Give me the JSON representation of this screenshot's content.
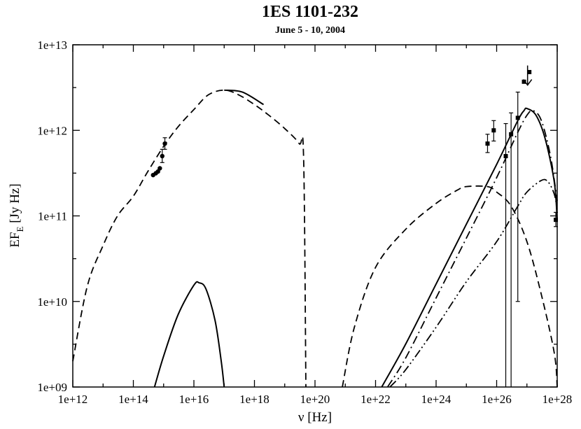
{
  "chart_data": {
    "type": "line",
    "title": "1ES 1101-232",
    "subtitle": "June 5 - 10, 2004",
    "xlabel": "ν [Hz]",
    "ylabel": {
      "main": "EF",
      "sub": "E",
      "unit": " [Jy Hz]"
    },
    "x_scale": "log",
    "y_scale": "log",
    "xlim": [
      1000000000000.0,
      1e+28
    ],
    "ylim": [
      1000000000.0,
      10000000000000.0
    ],
    "xticks": [
      {
        "value": 1000000000000.0,
        "label": "1e+12"
      },
      {
        "value": 100000000000000.0,
        "label": "1e+14"
      },
      {
        "value": 1e+16,
        "label": "1e+16"
      },
      {
        "value": 1e+18,
        "label": "1e+18"
      },
      {
        "value": 1e+20,
        "label": "1e+20"
      },
      {
        "value": 1e+22,
        "label": "1e+22"
      },
      {
        "value": 1e+24,
        "label": "1e+24"
      },
      {
        "value": 1e+26,
        "label": "1e+26"
      },
      {
        "value": 1e+28,
        "label": "1e+28"
      }
    ],
    "yticks": [
      {
        "value": 1000000000.0,
        "label": "1e+09"
      },
      {
        "value": 10000000000.0,
        "label": "1e+10"
      },
      {
        "value": 100000000000.0,
        "label": "1e+11"
      },
      {
        "value": 1000000000000.0,
        "label": "1e+12"
      },
      {
        "value": 10000000000000.0,
        "label": "1e+13"
      }
    ],
    "grid": false,
    "legend": "none",
    "series": [
      {
        "style": "dashed",
        "x": [
          1000000000000.0,
          3000000000000.0,
          10000000000000.0,
          30000000000000.0,
          100000000000000.0,
          300000000000000.0,
          1000000000000000.0,
          3000000000000000.0,
          1e+16,
          3e+16,
          1e+17,
          3e+17,
          1e+18,
          3e+18,
          1e+19,
          3e+19,
          4.2e+19,
          5e+19
        ],
        "y": [
          2000000000.0,
          15000000000.0,
          45000000000.0,
          100000000000.0,
          170000000000.0,
          330000000000.0,
          650000000000.0,
          1100000000000.0,
          1750000000000.0,
          2600000000000.0,
          2950000000000.0,
          2600000000000.0,
          2000000000000.0,
          1500000000000.0,
          1050000000000.0,
          700000000000.0,
          480000000000.0,
          1000000000.0
        ]
      },
      {
        "style": "solid",
        "x": [
          500000000000000.0,
          1000000000000000.0,
          3000000000000000.0,
          1e+16,
          1.5e+16,
          2.5e+16,
          5e+16,
          8e+16,
          1e+17
        ],
        "y": [
          1000000000.0,
          2300000000.0,
          7000000000.0,
          15500000000.0,
          16500000000.0,
          14000000000.0,
          6000000000.0,
          2000000000.0,
          1000000000.0
        ]
      },
      {
        "style": "solid",
        "x": [
          1e+17,
          4e+17,
          2e+18
        ],
        "y": [
          2950000000000.0,
          2800000000000.0,
          2000000000000.0
        ]
      },
      {
        "style": "dashed",
        "x": [
          8e+20,
          2e+21,
          1e+22,
          1e+23,
          1e+24,
          5e+24,
          1e+25,
          5e+25,
          1e+26,
          3e+26,
          1e+27,
          3e+27,
          8e+27,
          1e+28
        ],
        "y": [
          1000000000.0,
          5000000000.0,
          25000000000.0,
          70000000000.0,
          140000000000.0,
          200000000000.0,
          220000000000.0,
          220000000000.0,
          190000000000.0,
          130000000000.0,
          50000000000.0,
          12000000000.0,
          2500000000.0,
          1000000000.0
        ]
      },
      {
        "style": "solid",
        "x": [
          1.6e+22,
          1e+23,
          1e+24,
          1e+25,
          1e+26,
          5e+26,
          8e+26,
          1e+27,
          2e+27,
          4e+27,
          8e+27,
          1e+28
        ],
        "y": [
          1000000000.0,
          3200000000.0,
          16000000000.0,
          80000000000.0,
          400000000000.0,
          1300000000000.0,
          1700000000000.0,
          1800000000000.0,
          1500000000000.0,
          800000000000.0,
          250000000000.0,
          90000000000.0
        ]
      },
      {
        "style": "dashdot",
        "x": [
          2.5e+22,
          1e+23,
          1e+24,
          1e+25,
          1e+26,
          5e+26,
          1e+27,
          1.6e+27,
          3e+27,
          6e+27,
          1e+28
        ],
        "y": [
          1000000000.0,
          2200000000.0,
          11000000000.0,
          55000000000.0,
          280000000000.0,
          950000000000.0,
          1500000000000.0,
          1700000000000.0,
          1300000000000.0,
          500000000000.0,
          150000000000.0
        ]
      },
      {
        "style": "dashdotdot",
        "x": [
          3e+22,
          1e+23,
          1e+24,
          1e+25,
          1e+26,
          5e+26,
          1e+27,
          3e+27,
          5e+27,
          8e+27,
          1e+28
        ],
        "y": [
          1000000000.0,
          1600000000.0,
          5000000000.0,
          17000000000.0,
          50000000000.0,
          130000000000.0,
          190000000000.0,
          260000000000.0,
          250000000000.0,
          180000000000.0,
          120000000000.0
        ]
      }
    ],
    "points_circle": [
      {
        "x": 450000000000000.0,
        "y": 300000000000.0
      },
      {
        "x": 550000000000000.0,
        "y": 315000000000.0
      },
      {
        "x": 650000000000000.0,
        "y": 330000000000.0
      },
      {
        "x": 750000000000000.0,
        "y": 360000000000.0
      },
      {
        "x": 900000000000000.0,
        "y": 500000000000.0,
        "yerr": [
          420000000000.0,
          600000000000.0
        ]
      },
      {
        "x": 1100000000000000.0,
        "y": 700000000000.0,
        "yerr": [
          600000000000.0,
          820000000000.0
        ]
      }
    ],
    "points_square": [
      {
        "x": 5e+25,
        "y": 700000000000.0,
        "yerr": [
          550000000000.0,
          900000000000.0
        ]
      },
      {
        "x": 8e+25,
        "y": 1000000000000.0,
        "yerr": [
          750000000000.0,
          1300000000000.0
        ]
      },
      {
        "x": 2e+26,
        "y": 500000000000.0,
        "yerr": [
          1000000000.0,
          1200000000000.0
        ]
      },
      {
        "x": 3e+26,
        "y": 900000000000.0,
        "yerr": [
          1000000000.0,
          1600000000000.0
        ]
      },
      {
        "x": 5e+26,
        "y": 1400000000000.0,
        "yerr": [
          10000000000.0,
          2800000000000.0
        ]
      },
      {
        "x": 8e+26,
        "y": 3700000000000.0
      },
      {
        "x": 1.2e+27,
        "y": 4800000000000.0
      },
      {
        "x": 9e+27,
        "y": 90000000000.0,
        "yerr": [
          75000000000.0,
          110000000000.0
        ]
      }
    ],
    "upper_limits": [
      {
        "x": 1.05e+27,
        "y": 4400000000000.0
      }
    ]
  }
}
